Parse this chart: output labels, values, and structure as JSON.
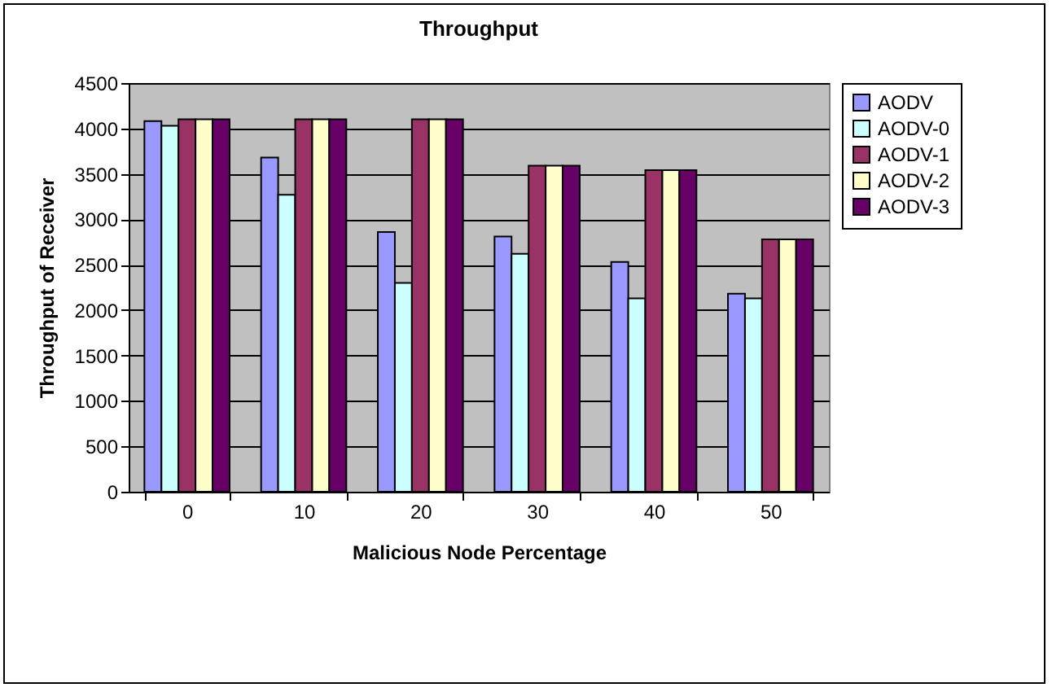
{
  "chart_data": {
    "type": "bar",
    "title": "Throughput",
    "xlabel": "Malicious Node Percentage",
    "ylabel": "Throughput of Receiver",
    "categories": [
      "0",
      "10",
      "20",
      "30",
      "40",
      "50"
    ],
    "series": [
      {
        "name": "AODV",
        "color": "#9999ff",
        "values": [
          4080,
          3680,
          2860,
          2810,
          2530,
          2180
        ]
      },
      {
        "name": "AODV-0",
        "color": "#ccffff",
        "values": [
          4030,
          3270,
          2300,
          2620,
          2130,
          2130
        ]
      },
      {
        "name": "AODV-1",
        "color": "#993366",
        "values": [
          4100,
          4100,
          4100,
          3590,
          3540,
          2780
        ]
      },
      {
        "name": "AODV-2",
        "color": "#ffffcc",
        "values": [
          4100,
          4100,
          4100,
          3590,
          3540,
          2780
        ]
      },
      {
        "name": "AODV-3",
        "color": "#660066",
        "values": [
          4100,
          4100,
          4100,
          3590,
          3540,
          2780
        ]
      }
    ],
    "ylim": [
      0,
      4500
    ],
    "yticks": [
      0,
      500,
      1000,
      1500,
      2000,
      2500,
      3000,
      3500,
      4000,
      4500
    ],
    "grid": "y",
    "legend": "right"
  }
}
